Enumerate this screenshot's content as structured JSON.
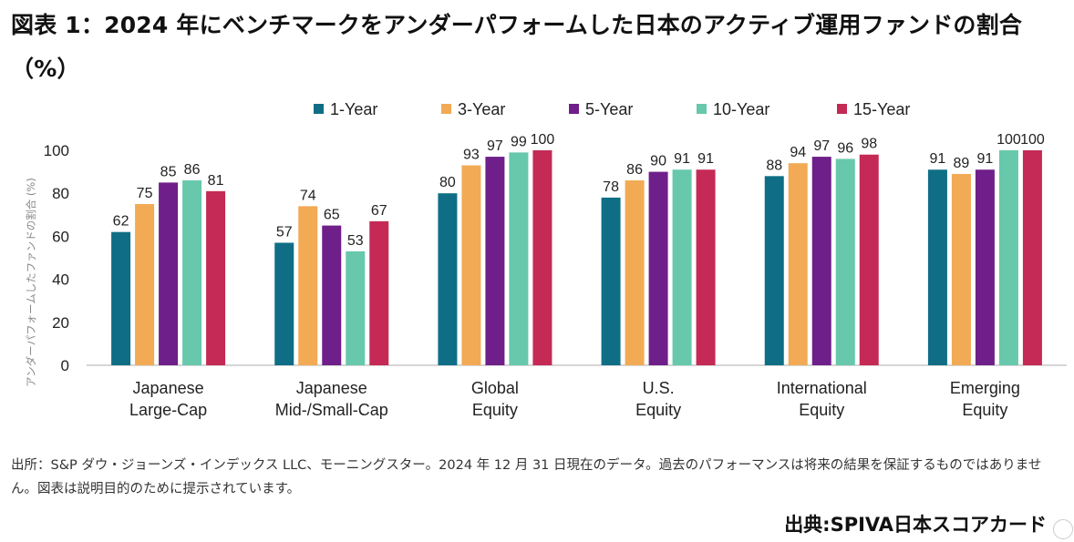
{
  "title": "図表 1：2024 年にベンチマークをアンダーパフォームした日本のアクティブ運用ファンドの割合（%）",
  "note": "出所：S&P ダウ・ジョーンズ・インデックス LLC、モーニングスター。2024 年 12 月 31 日現在のデータ。過去のパフォーマンスは将来の結果を保証するものではありません。図表は説明目的のために提示されています。",
  "source": "出典:SPIVA日本スコアカード",
  "chart_data": {
    "type": "bar",
    "title": "",
    "xlabel": "",
    "ylabel": "アンダーパフォームしたファンドの割合 (%)",
    "ylim": [
      0,
      100
    ],
    "yticks": [
      0,
      20,
      40,
      60,
      80,
      100
    ],
    "grid": false,
    "legend_position": "top",
    "categories": [
      [
        "Japanese",
        "Large-Cap"
      ],
      [
        "Japanese",
        "Mid-/Small-Cap"
      ],
      [
        "Global",
        "Equity"
      ],
      [
        "U.S.",
        "Equity"
      ],
      [
        "International",
        "Equity"
      ],
      [
        "Emerging",
        "Equity"
      ]
    ],
    "series": [
      {
        "name": "1-Year",
        "color": "#0f6e86",
        "values": [
          62,
          57,
          80,
          78,
          88,
          91
        ]
      },
      {
        "name": "3-Year",
        "color": "#f2aa54",
        "values": [
          75,
          74,
          93,
          86,
          94,
          89
        ]
      },
      {
        "name": "5-Year",
        "color": "#6f1f89",
        "values": [
          85,
          65,
          97,
          90,
          97,
          91
        ]
      },
      {
        "name": "10-Year",
        "color": "#67c8ac",
        "values": [
          86,
          53,
          99,
          91,
          96,
          100
        ]
      },
      {
        "name": "15-Year",
        "color": "#c42a55",
        "values": [
          81,
          67,
          100,
          91,
          98,
          100
        ]
      }
    ]
  }
}
